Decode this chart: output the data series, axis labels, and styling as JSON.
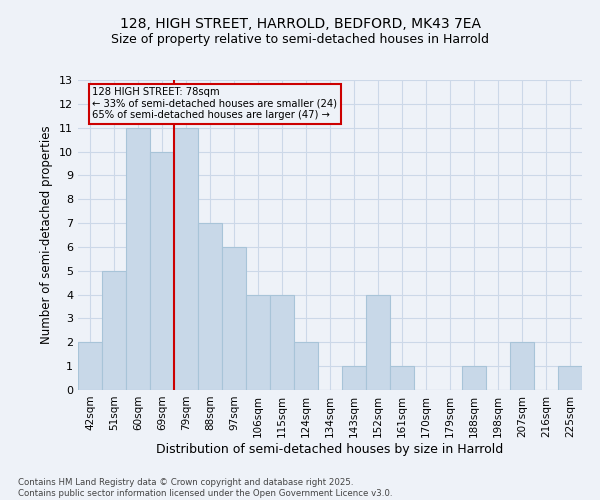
{
  "title1": "128, HIGH STREET, HARROLD, BEDFORD, MK43 7EA",
  "title2": "Size of property relative to semi-detached houses in Harrold",
  "xlabel": "Distribution of semi-detached houses by size in Harrold",
  "ylabel": "Number of semi-detached properties",
  "categories": [
    "42sqm",
    "51sqm",
    "60sqm",
    "69sqm",
    "79sqm",
    "88sqm",
    "97sqm",
    "106sqm",
    "115sqm",
    "124sqm",
    "134sqm",
    "143sqm",
    "152sqm",
    "161sqm",
    "170sqm",
    "179sqm",
    "188sqm",
    "198sqm",
    "207sqm",
    "216sqm",
    "225sqm"
  ],
  "values": [
    2,
    5,
    11,
    10,
    11,
    7,
    6,
    4,
    4,
    2,
    0,
    1,
    4,
    1,
    0,
    0,
    1,
    0,
    2,
    0,
    1
  ],
  "bar_color": "#c8d8e8",
  "bar_edge_color": "#a8c4d8",
  "grid_color": "#ccd8e8",
  "background_color": "#eef2f8",
  "property_line_index": 4,
  "property_label": "128 HIGH STREET: 78sqm",
  "annotation_line1": "← 33% of semi-detached houses are smaller (24)",
  "annotation_line2": "65% of semi-detached houses are larger (47) →",
  "annotation_box_color": "#cc0000",
  "ylim": [
    0,
    13
  ],
  "yticks": [
    0,
    1,
    2,
    3,
    4,
    5,
    6,
    7,
    8,
    9,
    10,
    11,
    12,
    13
  ],
  "footer1": "Contains HM Land Registry data © Crown copyright and database right 2025.",
  "footer2": "Contains public sector information licensed under the Open Government Licence v3.0."
}
